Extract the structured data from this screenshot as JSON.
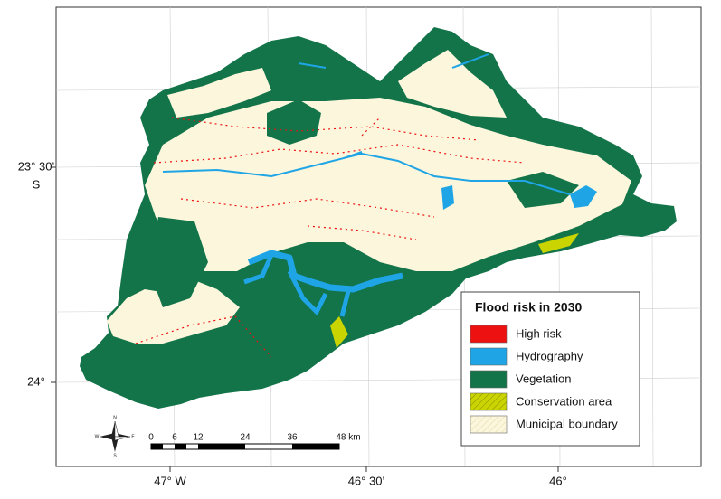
{
  "map": {
    "lat_labels": [
      "23° 30’",
      "S",
      "24°"
    ],
    "lon_labels": [
      "47° W",
      "46° 30’",
      "46°"
    ],
    "legend": {
      "title": "Flood risk in 2030",
      "items": [
        {
          "label": "High risk",
          "color": "#ee1111"
        },
        {
          "label": "Hydrography",
          "color": "#1fa5e6"
        },
        {
          "label": "Vegetation",
          "color": "#13744a"
        },
        {
          "label": "Conservation area",
          "color": "#c9d400"
        },
        {
          "label": "Municipal boundary",
          "color": "#fbf6dc"
        }
      ]
    },
    "scale_bar": [
      "0",
      "6",
      "12",
      "24",
      "36",
      "48 km"
    ],
    "compass": [
      "N",
      "S",
      "E",
      "W"
    ]
  }
}
